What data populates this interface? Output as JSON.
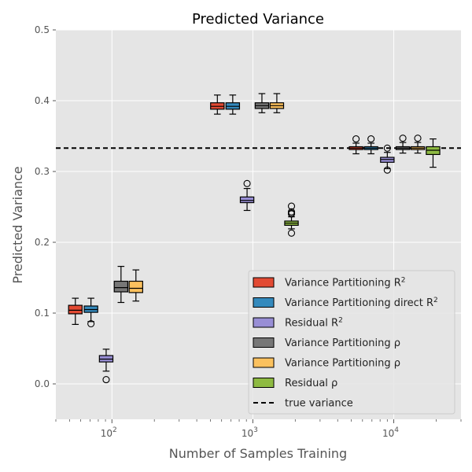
{
  "chart_data": {
    "type": "box",
    "title": "Predicted Variance",
    "xlabel": "Number of Samples Training",
    "ylabel": "Predicted Variance",
    "xscale": "log",
    "xlim": [
      40,
      30000
    ],
    "ylim": [
      -0.05,
      0.5
    ],
    "y_ticks": [
      "0.0",
      "0.1",
      "0.2",
      "0.3",
      "0.4",
      "0.5"
    ],
    "x_major_ticks": [
      {
        "base": "10",
        "exp": "2"
      },
      {
        "base": "10",
        "exp": "3"
      },
      {
        "base": "10",
        "exp": "4"
      }
    ],
    "grid": true,
    "legend_position": "lower right",
    "reference_line": {
      "label": "true variance",
      "value": 0.333,
      "style": "dashed",
      "color": "#000000"
    },
    "series": [
      {
        "name": "Variance Partitioning R",
        "sup": "2",
        "color": "#e24a33",
        "boxes": [
          {
            "x": 55,
            "whislo": 0.084,
            "q1": 0.099,
            "med": 0.104,
            "q3": 0.111,
            "whishi": 0.121,
            "fliers": []
          },
          {
            "x": 560,
            "whislo": 0.381,
            "q1": 0.388,
            "med": 0.392,
            "q3": 0.397,
            "whishi": 0.408,
            "fliers": []
          }
        ]
      },
      {
        "name": "Variance Partitioning direct R",
        "sup": "2",
        "color": "#348abd",
        "boxes": [
          {
            "x": 71,
            "whislo": 0.088,
            "q1": 0.101,
            "med": 0.105,
            "q3": 0.11,
            "whishi": 0.121,
            "fliers": [
              0.085
            ]
          },
          {
            "x": 720,
            "whislo": 0.381,
            "q1": 0.388,
            "med": 0.392,
            "q3": 0.397,
            "whishi": 0.408,
            "fliers": []
          }
        ]
      },
      {
        "name": "Residual R",
        "sup": "2",
        "color": "#988ed5",
        "boxes": [
          {
            "x": 91,
            "whislo": 0.018,
            "q1": 0.031,
            "med": 0.035,
            "q3": 0.04,
            "whishi": 0.049,
            "fliers": [
              0.006
            ]
          },
          {
            "x": 910,
            "whislo": 0.245,
            "q1": 0.256,
            "med": 0.259,
            "q3": 0.264,
            "whishi": 0.276,
            "fliers": [
              0.283
            ]
          },
          {
            "x": 9000,
            "whislo": 0.304,
            "q1": 0.313,
            "med": 0.317,
            "q3": 0.32,
            "whishi": 0.327,
            "fliers": [
              0.333,
              0.302
            ]
          }
        ]
      },
      {
        "name": "Variance Partitioning ρ",
        "sup": "",
        "color": "#777777",
        "boxes": [
          {
            "x": 116,
            "whislo": 0.115,
            "q1": 0.13,
            "med": 0.136,
            "q3": 0.145,
            "whishi": 0.166,
            "fliers": []
          },
          {
            "x": 1160,
            "whislo": 0.383,
            "q1": 0.389,
            "med": 0.393,
            "q3": 0.397,
            "whishi": 0.41,
            "fliers": []
          }
        ]
      },
      {
        "name": "Variance Partitioning ρ",
        "sup": "",
        "color": "#fbc15e",
        "boxes": [
          {
            "x": 148,
            "whislo": 0.117,
            "q1": 0.129,
            "med": 0.135,
            "q3": 0.145,
            "whishi": 0.161,
            "fliers": []
          },
          {
            "x": 1480,
            "whislo": 0.383,
            "q1": 0.389,
            "med": 0.393,
            "q3": 0.397,
            "whishi": 0.41,
            "fliers": []
          }
        ]
      },
      {
        "name": "Residual ρ",
        "sup": "",
        "color": "#8eba42",
        "boxes": [
          {
            "x": 1880,
            "whislo": 0.219,
            "q1": 0.224,
            "med": 0.227,
            "q3": 0.23,
            "whishi": 0.236,
            "fliers": [
              0.251,
              0.243,
              0.241,
              0.24,
              0.213
            ]
          },
          {
            "x": 19000,
            "whislo": 0.306,
            "q1": 0.324,
            "med": 0.33,
            "q3": 0.335,
            "whishi": 0.346,
            "fliers": []
          }
        ]
      }
    ],
    "extra_boxes": [
      {
        "series": 0,
        "x": 5400,
        "whislo": 0.325,
        "q1": 0.331,
        "med": 0.333,
        "q3": 0.335,
        "whishi": 0.34,
        "fliers": [
          0.346
        ]
      },
      {
        "series": 1,
        "x": 6900,
        "whislo": 0.325,
        "q1": 0.331,
        "med": 0.333,
        "q3": 0.335,
        "whishi": 0.34,
        "fliers": [
          0.346
        ]
      },
      {
        "series": 3,
        "x": 11600,
        "whislo": 0.326,
        "q1": 0.331,
        "med": 0.333,
        "q3": 0.335,
        "whishi": 0.341,
        "fliers": [
          0.347
        ]
      },
      {
        "series": 4,
        "x": 14800,
        "whislo": 0.326,
        "q1": 0.331,
        "med": 0.333,
        "q3": 0.335,
        "whishi": 0.341,
        "fliers": [
          0.347
        ]
      }
    ]
  }
}
